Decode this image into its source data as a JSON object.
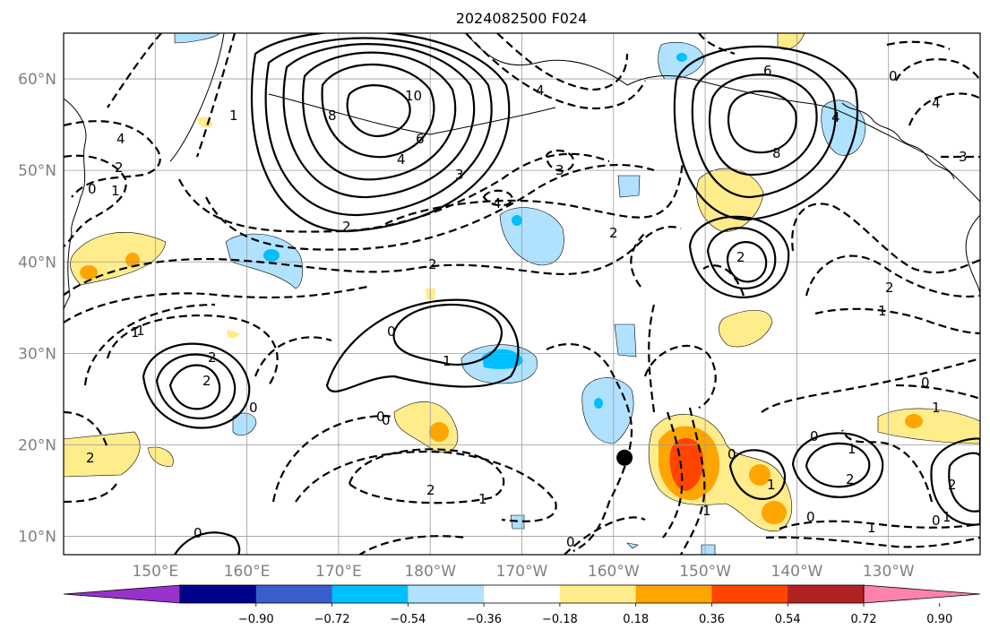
{
  "title": "2024082500 F024",
  "lat_labels": [
    {
      "id": "lat-60",
      "text": "60°N",
      "lat": 60
    },
    {
      "id": "lat-50",
      "text": "50°N",
      "lat": 50
    },
    {
      "id": "lat-40",
      "text": "40°N",
      "lat": 40
    },
    {
      "id": "lat-30",
      "text": "30°N",
      "lat": 30
    },
    {
      "id": "lat-20",
      "text": "20°N",
      "lat": 20
    },
    {
      "id": "lat-10",
      "text": "10°N",
      "lat": 10
    }
  ],
  "lon_labels": [
    {
      "id": "lon-150e",
      "text": "150°E",
      "lon": 150
    },
    {
      "id": "lon-160e",
      "text": "160°E",
      "lon": 160
    },
    {
      "id": "lon-170e",
      "text": "170°E",
      "lon": 170
    },
    {
      "id": "lon-180w",
      "text": "180°W",
      "lon": 180
    },
    {
      "id": "lon-170w",
      "text": "170°W",
      "lon": 190
    },
    {
      "id": "lon-160w",
      "text": "160°W",
      "lon": 200
    },
    {
      "id": "lon-150w",
      "text": "150°W",
      "lon": 210
    },
    {
      "id": "lon-140w",
      "text": "140°W",
      "lon": 220
    },
    {
      "id": "lon-130w",
      "text": "130°W",
      "lon": 230
    }
  ],
  "extent": {
    "lon_min": 140,
    "lon_max": 240,
    "lat_min": 8,
    "lat_max": 65
  },
  "colorbar": {
    "colors": [
      "#9932cc",
      "#00008b",
      "#3a5fcd",
      "#00bfff",
      "#b0e2ff",
      "#ffffff",
      "#ffec8b",
      "#ffa500",
      "#ff4500",
      "#b22222",
      "#ff82ab"
    ],
    "tick_labels": [
      "−0.90",
      "−0.72",
      "−0.54",
      "−0.36",
      "−0.18",
      "0.18",
      "0.36",
      "0.54",
      "0.72",
      "0.90"
    ]
  },
  "contour_labels": [
    {
      "id": "cl-10",
      "text": "10"
    },
    {
      "id": "cl-8a",
      "text": "8"
    },
    {
      "id": "cl-6a",
      "text": "6"
    },
    {
      "id": "cl-4a",
      "text": "4"
    },
    {
      "id": "cl-2a",
      "text": "2"
    },
    {
      "id": "cl-3a",
      "text": "3"
    },
    {
      "id": "cl-m4a",
      "text": "4"
    },
    {
      "id": "cl-m3a",
      "text": "3"
    },
    {
      "id": "cl-m4b",
      "text": "4"
    },
    {
      "id": "cl-m2a",
      "text": "2"
    },
    {
      "id": "cl-6b",
      "text": "6"
    },
    {
      "id": "cl-8b",
      "text": "8"
    },
    {
      "id": "cl-4b",
      "text": "4"
    },
    {
      "id": "cl-0a",
      "text": "0"
    },
    {
      "id": "cl-m4c",
      "text": "4"
    },
    {
      "id": "cl-m3b",
      "text": "3"
    },
    {
      "id": "cl-2b",
      "text": "2"
    },
    {
      "id": "cl-m2b",
      "text": "2"
    },
    {
      "id": "cl-m1a",
      "text": "1"
    },
    {
      "id": "cl-m4d",
      "text": "4"
    },
    {
      "id": "cl-m2c",
      "text": "2"
    },
    {
      "id": "cl-m1b",
      "text": "1"
    },
    {
      "id": "cl-0b",
      "text": "0"
    },
    {
      "id": "cl-m2d",
      "text": "2"
    },
    {
      "id": "cl-1a",
      "text": "1"
    },
    {
      "id": "cl-2c",
      "text": "2"
    },
    {
      "id": "cl-2d",
      "text": "2"
    },
    {
      "id": "cl-0c",
      "text": "0"
    },
    {
      "id": "cl-0d",
      "text": "0"
    },
    {
      "id": "cl-1b",
      "text": "1"
    },
    {
      "id": "cl-0e",
      "text": "0"
    },
    {
      "id": "cl-m2e",
      "text": "2"
    },
    {
      "id": "cl-m1c",
      "text": "1"
    },
    {
      "id": "cl-0f",
      "text": "0"
    },
    {
      "id": "cl-0g",
      "text": "0"
    },
    {
      "id": "cl-0h",
      "text": "0"
    },
    {
      "id": "cl-1c",
      "text": "1"
    },
    {
      "id": "cl-0i",
      "text": "0"
    },
    {
      "id": "cl-1d",
      "text": "1"
    },
    {
      "id": "cl-2e",
      "text": "2"
    },
    {
      "id": "cl-0j",
      "text": "0"
    },
    {
      "id": "cl-m1d",
      "text": "1"
    },
    {
      "id": "cl-0k",
      "text": "0"
    },
    {
      "id": "cl-1e",
      "text": "1"
    },
    {
      "id": "cl-2f",
      "text": "2"
    },
    {
      "id": "cl-0l",
      "text": "0"
    },
    {
      "id": "cl-1f",
      "text": "1"
    },
    {
      "id": "cl-m2f",
      "text": "2"
    },
    {
      "id": "cl-m1e",
      "text": "1"
    },
    {
      "id": "cl-m1f",
      "text": "1"
    },
    {
      "id": "cl-0m",
      "text": "0"
    },
    {
      "id": "cl-m1g",
      "text": "1"
    }
  ],
  "marker": {
    "name": "Hawaii location marker",
    "lon": 201.2,
    "lat": 18.6
  }
}
